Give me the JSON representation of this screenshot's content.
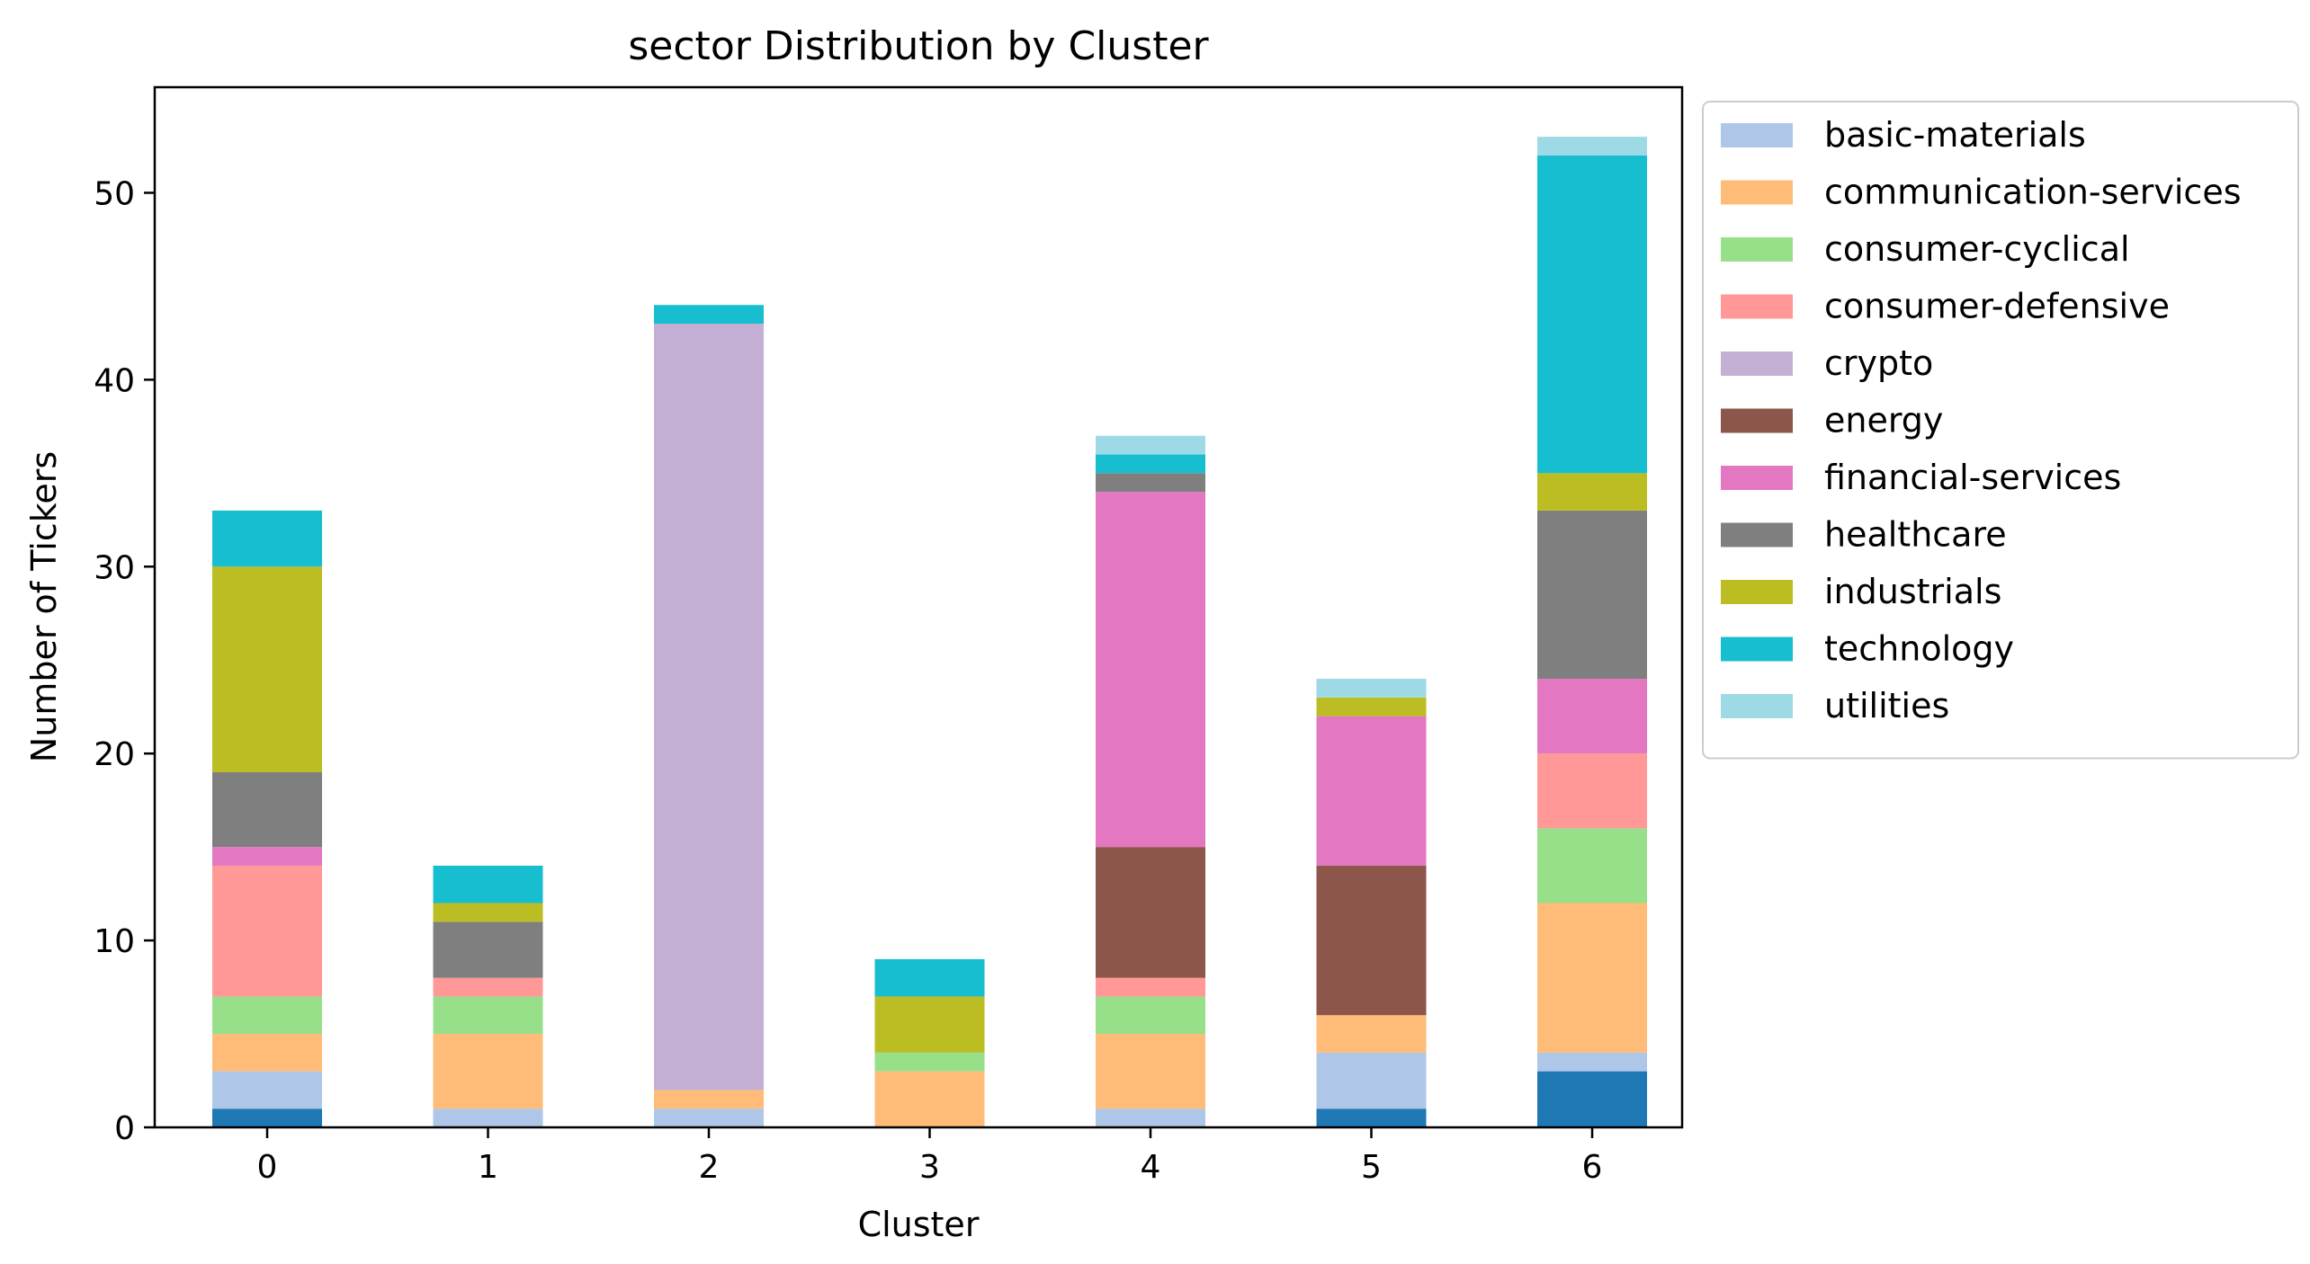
{
  "chart_data": {
    "type": "bar",
    "stacked": true,
    "title": "sector Distribution by Cluster",
    "xlabel": "Cluster",
    "ylabel": "Number of Tickers",
    "categories": [
      "0",
      "1",
      "2",
      "3",
      "4",
      "5",
      "6"
    ],
    "ylim": [
      0,
      55.65
    ],
    "yticks": [
      0,
      10,
      20,
      30,
      40,
      50
    ],
    "grid": false,
    "legend_position": "outside-right",
    "series": [
      {
        "name": "",
        "color": "#1f77b4",
        "values": [
          1,
          0,
          0,
          0,
          0,
          1,
          3
        ]
      },
      {
        "name": "basic-materials",
        "color": "#aec7e8",
        "values": [
          2,
          1,
          1,
          0,
          1,
          3,
          1
        ]
      },
      {
        "name": "communication-services",
        "color": "#ffbb78",
        "values": [
          2,
          4,
          1,
          3,
          4,
          2,
          8
        ]
      },
      {
        "name": "consumer-cyclical",
        "color": "#98df8a",
        "values": [
          2,
          2,
          0,
          1,
          2,
          0,
          4
        ]
      },
      {
        "name": "consumer-defensive",
        "color": "#ff9896",
        "values": [
          7,
          1,
          0,
          0,
          1,
          0,
          4
        ]
      },
      {
        "name": "crypto",
        "color": "#c5b0d5",
        "values": [
          0,
          0,
          41,
          0,
          0,
          0,
          0
        ]
      },
      {
        "name": "energy",
        "color": "#8c564b",
        "values": [
          0,
          0,
          0,
          0,
          7,
          8,
          0
        ]
      },
      {
        "name": "financial-services",
        "color": "#e377c2",
        "values": [
          1,
          0,
          0,
          0,
          19,
          8,
          4
        ]
      },
      {
        "name": "healthcare",
        "color": "#7f7f7f",
        "values": [
          4,
          3,
          0,
          0,
          1,
          0,
          9
        ]
      },
      {
        "name": "industrials",
        "color": "#bcbd22",
        "values": [
          11,
          1,
          0,
          3,
          0,
          1,
          2
        ]
      },
      {
        "name": "technology",
        "color": "#17becf",
        "values": [
          3,
          2,
          1,
          2,
          1,
          0,
          17
        ]
      },
      {
        "name": "utilities",
        "color": "#9edae5",
        "values": [
          0,
          0,
          0,
          0,
          1,
          1,
          1
        ]
      }
    ]
  }
}
